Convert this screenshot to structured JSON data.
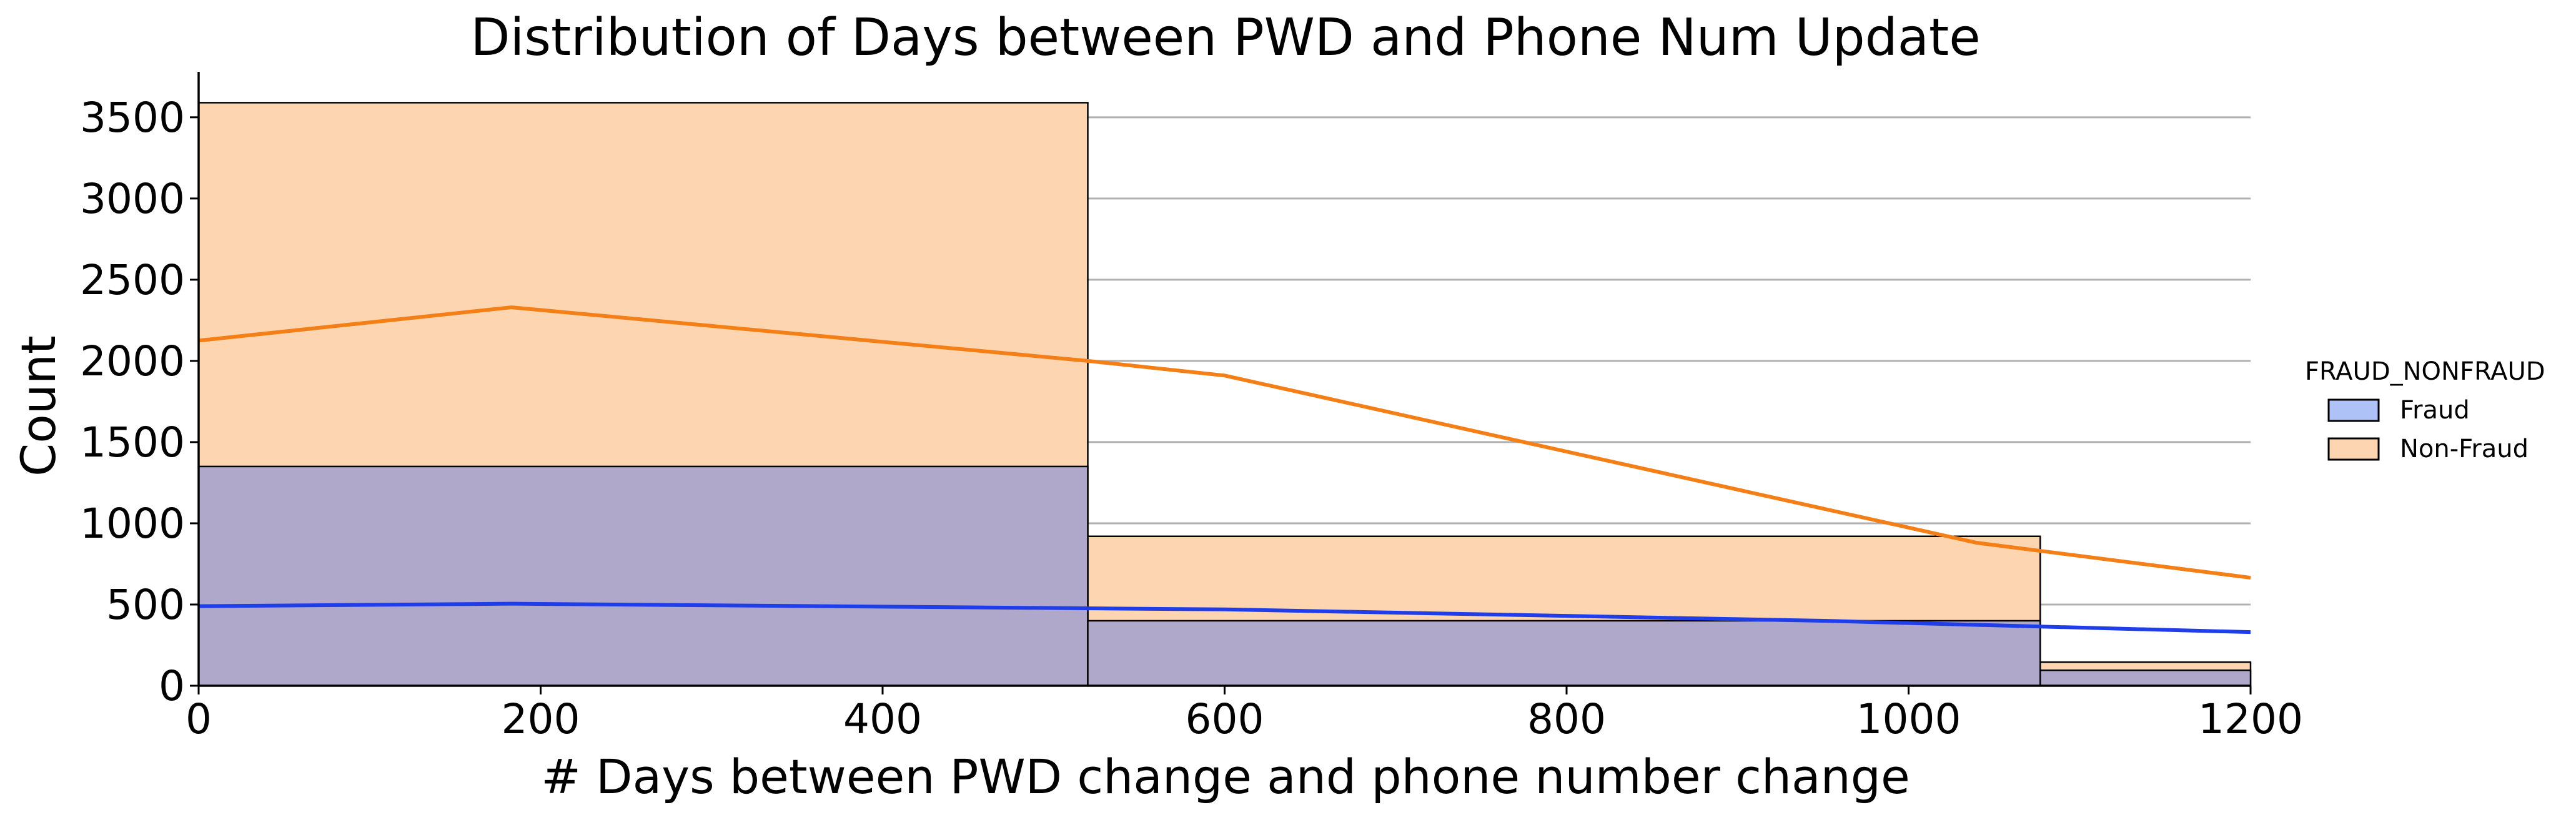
{
  "chart_data": {
    "type": "bar",
    "title": "Distribution of Days between PWD and Phone Num Update",
    "xlabel": "# Days between PWD change and phone number change",
    "ylabel": "Count",
    "xlim": [
      0,
      1200
    ],
    "ylim": [
      0,
      3780
    ],
    "x_ticks": [
      "0",
      "200",
      "400",
      "600",
      "800",
      "1000",
      "1200"
    ],
    "y_ticks": [
      "0",
      "500",
      "1000",
      "1500",
      "2000",
      "2500",
      "3000",
      "3500"
    ],
    "grid": "horizontal",
    "legend": {
      "title": "FRAUD_NONFRAUD",
      "placement": "right",
      "entries": [
        "Fraud",
        "Non-Fraud"
      ]
    },
    "bins": [
      {
        "start": 0,
        "end": 520
      },
      {
        "start": 520,
        "end": 1077
      },
      {
        "start": 1077,
        "end": 1200
      }
    ],
    "series": [
      {
        "name": "Fraud",
        "fill_color": "#b0a8cb",
        "line_color": "#1f3de8",
        "values": [
          1350,
          400,
          95
        ],
        "kde": {
          "x": [
            0,
            183,
            600,
            950,
            1200
          ],
          "y": [
            490,
            505,
            470,
            400,
            330
          ]
        }
      },
      {
        "name": "Non-Fraud",
        "fill_color": "#fdd5b1",
        "line_color": "#f57f17",
        "values": [
          3590,
          920,
          145
        ],
        "kde": {
          "x": [
            0,
            183,
            520,
            600,
            1040,
            1200
          ],
          "y": [
            2125,
            2330,
            2000,
            1910,
            880,
            665
          ]
        }
      }
    ]
  },
  "colors": {
    "fraud_legend_fill": "#aec2f7",
    "nonfraud_legend_fill": "#fdd5b1",
    "grid": "#b0b0b0",
    "axis": "#000000"
  }
}
